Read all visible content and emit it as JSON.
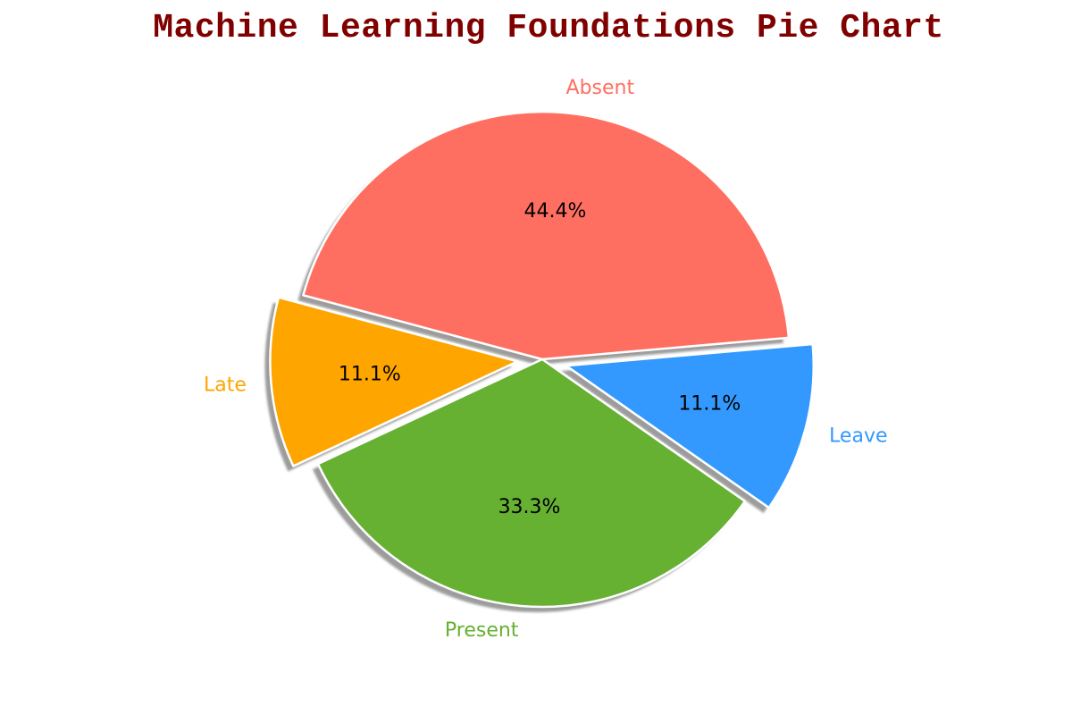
{
  "chart_data": {
    "type": "pie",
    "title": "Machine Learning Foundations Pie Chart",
    "categories": [
      "Absent",
      "Late",
      "Present",
      "Leave"
    ],
    "values": [
      44.4,
      11.1,
      33.3,
      11.1
    ],
    "value_labels": [
      "44.4%",
      "11.1%",
      "33.3%",
      "11.1%"
    ],
    "colors": [
      "#ff6f61",
      "#ffa500",
      "#66b032",
      "#3399ff"
    ],
    "exploded": [
      false,
      true,
      false,
      true
    ],
    "shadow": true,
    "start_angle_deg": 5,
    "label_color": "match-slice",
    "title_color": "#800000"
  }
}
